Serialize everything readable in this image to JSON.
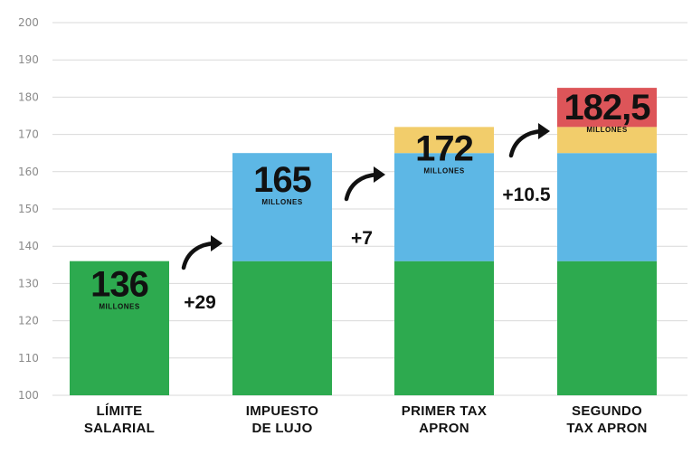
{
  "chart_data": {
    "type": "bar",
    "stacked": true,
    "ylim": [
      100,
      200
    ],
    "yticks": [
      100,
      110,
      120,
      130,
      140,
      150,
      160,
      170,
      180,
      190,
      200
    ],
    "grid": true,
    "categories": [
      [
        "LÍMITE",
        "SALARIAL"
      ],
      [
        "IMPUESTO",
        "DE LUJO"
      ],
      [
        "PRIMER TAX",
        "APRON"
      ],
      [
        "SEGUNDO",
        "TAX APRON"
      ]
    ],
    "totals": [
      136,
      165,
      172,
      182.5
    ],
    "total_labels": [
      "136",
      "165",
      "172",
      "182,5"
    ],
    "unit_label": "MILLONES",
    "segments": [
      [
        {
          "from": 100,
          "to": 136,
          "color": "#2daa4f"
        }
      ],
      [
        {
          "from": 100,
          "to": 136,
          "color": "#2daa4f"
        },
        {
          "from": 136,
          "to": 165,
          "color": "#5db7e5"
        }
      ],
      [
        {
          "from": 100,
          "to": 136,
          "color": "#2daa4f"
        },
        {
          "from": 136,
          "to": 165,
          "color": "#5db7e5"
        },
        {
          "from": 165,
          "to": 172,
          "color": "#f2cd6b"
        }
      ],
      [
        {
          "from": 100,
          "to": 136,
          "color": "#2daa4f"
        },
        {
          "from": 136,
          "to": 165,
          "color": "#5db7e5"
        },
        {
          "from": 165,
          "to": 172,
          "color": "#f2cd6b"
        },
        {
          "from": 172,
          "to": 182.5,
          "color": "#dd5559"
        }
      ]
    ],
    "increments": [
      "+29",
      "+7",
      "+10.5"
    ]
  },
  "colors": {
    "salary_cap": "#2daa4f",
    "luxury_tax": "#5db7e5",
    "first_apron": "#f2cd6b",
    "second_apron": "#dd5559",
    "text": "#111111",
    "grid": "#d9d9d9",
    "tick": "#8a8a8a"
  }
}
